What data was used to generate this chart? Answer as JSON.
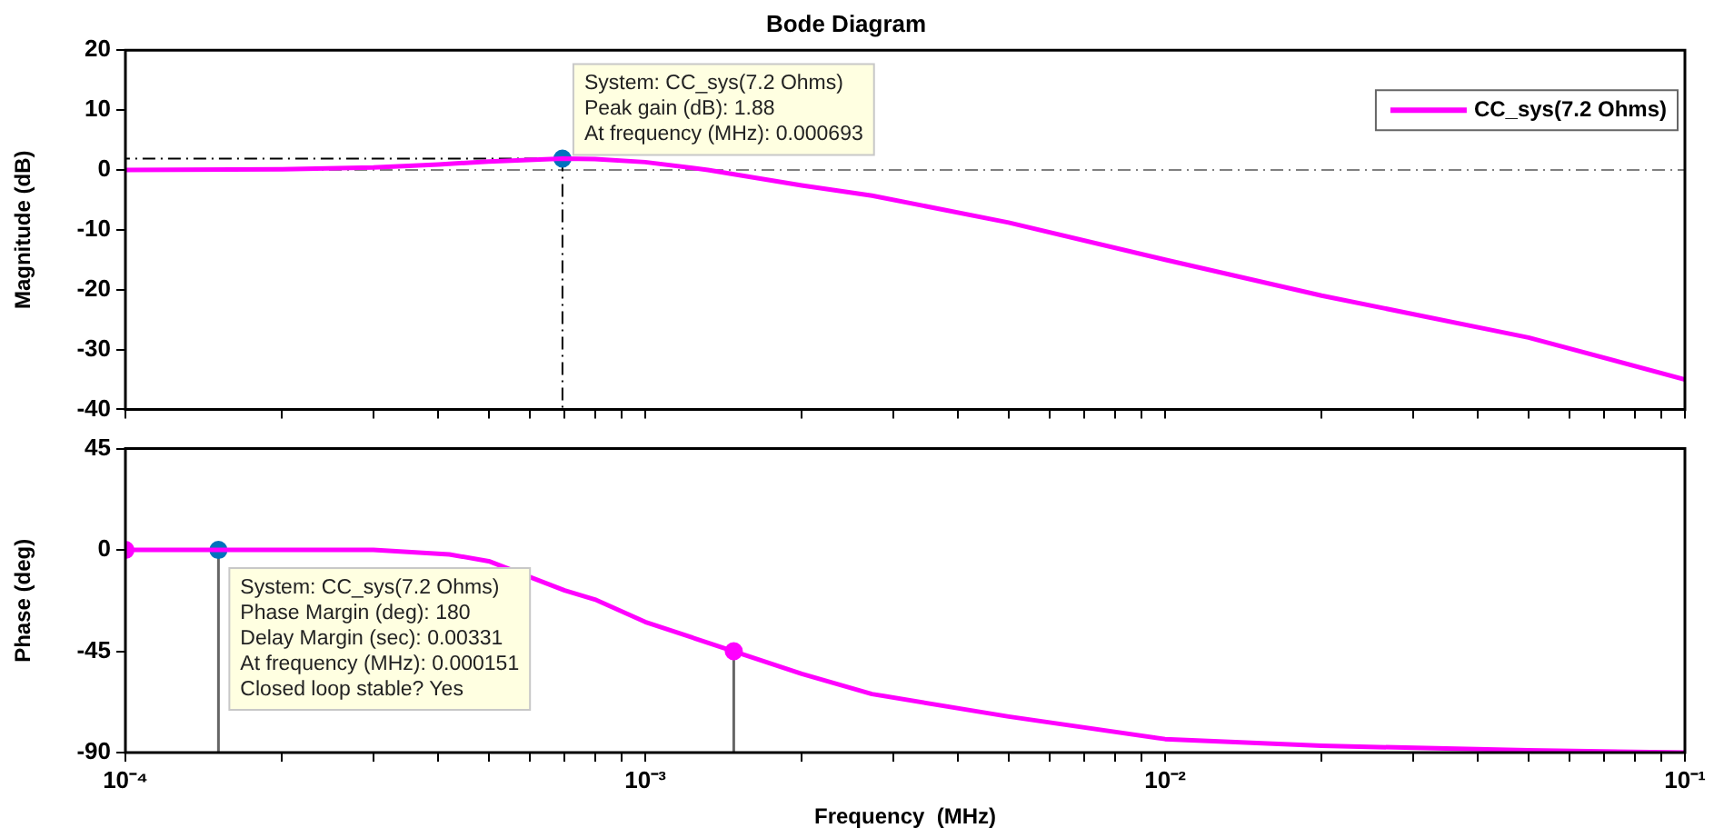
{
  "chart_data": [
    {
      "type": "line",
      "title": "Bode Diagram",
      "ylabel": "Magnitude (dB)",
      "log": "x",
      "grid": false,
      "legend": "top right",
      "tick_labels": "y",
      "xlim": [
        0.0001,
        0.1
      ],
      "xticks": [
        {
          "value": 0.0001,
          "label": null
        },
        {
          "value": 0.0002,
          "label": null
        },
        {
          "value": 0.0003,
          "label": null
        },
        {
          "value": 0.0004,
          "label": null
        },
        {
          "value": 0.0005,
          "label": null
        },
        {
          "value": 0.0006,
          "label": null
        },
        {
          "value": 0.0007,
          "label": null
        },
        {
          "value": 0.0008,
          "label": null
        },
        {
          "value": 0.0009,
          "label": null
        },
        {
          "value": 0.001,
          "label": null
        },
        {
          "value": 0.002,
          "label": null
        },
        {
          "value": 0.003,
          "label": null
        },
        {
          "value": 0.004,
          "label": null
        },
        {
          "value": 0.005,
          "label": null
        },
        {
          "value": 0.006,
          "label": null
        },
        {
          "value": 0.007,
          "label": null
        },
        {
          "value": 0.008,
          "label": null
        },
        {
          "value": 0.009,
          "label": null
        },
        {
          "value": 0.01,
          "label": null
        },
        {
          "value": 0.02,
          "label": null
        },
        {
          "value": 0.03,
          "label": null
        },
        {
          "value": 0.04,
          "label": null
        },
        {
          "value": 0.05,
          "label": null
        },
        {
          "value": 0.06,
          "label": null
        },
        {
          "value": 0.07,
          "label": null
        },
        {
          "value": 0.08,
          "label": null
        },
        {
          "value": 0.09,
          "label": null
        },
        {
          "value": 0.1,
          "label": null
        }
      ],
      "ylim": [
        -40,
        20
      ],
      "yticks": [
        -40,
        -30,
        -20,
        -10,
        0,
        10,
        20
      ],
      "ref_lines": [
        {
          "axis": "y",
          "value": 0,
          "color": "#808080",
          "line_style": "dashed"
        }
      ],
      "annotations": [
        {
          "text": "System: CC_sys(7.2 Ohms)\nPeak gain (dB): 1.88\nAt frequency (MHz): 0.000693",
          "x": 0.000693,
          "y": 1.88
        }
      ],
      "series": [
        {
          "name": "CC_sys(7.2 Ohms)",
          "color": "#ff00ff",
          "x": [
            0.0001,
            0.0002,
            0.0003,
            0.0004,
            0.0005,
            0.000693,
            0.0008,
            0.001,
            0.00132,
            0.0015,
            0.002,
            0.00273,
            0.005,
            0.01,
            0.02,
            0.05,
            0.1
          ],
          "values": [
            0,
            0.1,
            0.4,
            0.9,
            1.4,
            1.88,
            1.8,
            1.3,
            0,
            -0.8,
            -2.6,
            -4.3,
            -8.8,
            -15,
            -21,
            -28,
            -35
          ]
        },
        {
          "type": "scatter",
          "color": "#0072bd",
          "line_style": "dashed",
          "x": [
            0.000693
          ],
          "values": [
            1.88
          ]
        }
      ]
    },
    {
      "type": "line",
      "xlabel": "Frequency  (MHz)",
      "ylabel": "Phase (deg)",
      "log": "x",
      "grid": false,
      "xlim": [
        0.0001,
        0.1
      ],
      "xticks": [
        {
          "value": 0.0001,
          "label": "10⁻⁴"
        },
        {
          "value": 0.0002,
          "label": null
        },
        {
          "value": 0.0003,
          "label": null
        },
        {
          "value": 0.0004,
          "label": null
        },
        {
          "value": 0.0005,
          "label": null
        },
        {
          "value": 0.0006,
          "label": null
        },
        {
          "value": 0.0007,
          "label": null
        },
        {
          "value": 0.0008,
          "label": null
        },
        {
          "value": 0.0009,
          "label": null
        },
        {
          "value": 0.001,
          "label": "10⁻³"
        },
        {
          "value": 0.002,
          "label": null
        },
        {
          "value": 0.003,
          "label": null
        },
        {
          "value": 0.004,
          "label": null
        },
        {
          "value": 0.005,
          "label": null
        },
        {
          "value": 0.006,
          "label": null
        },
        {
          "value": 0.007,
          "label": null
        },
        {
          "value": 0.008,
          "label": null
        },
        {
          "value": 0.009,
          "label": null
        },
        {
          "value": 0.01,
          "label": "10⁻²"
        },
        {
          "value": 0.02,
          "label": null
        },
        {
          "value": 0.03,
          "label": null
        },
        {
          "value": 0.04,
          "label": null
        },
        {
          "value": 0.05,
          "label": null
        },
        {
          "value": 0.06,
          "label": null
        },
        {
          "value": 0.07,
          "label": null
        },
        {
          "value": 0.08,
          "label": null
        },
        {
          "value": 0.09,
          "label": null
        },
        {
          "value": 0.1,
          "label": "10⁻¹"
        }
      ],
      "ylim": [
        -90,
        45
      ],
      "yticks": [
        -90,
        -45,
        0,
        45
      ],
      "annotations": [
        {
          "text": "System: CC_sys(7.2 Ohms)\nPhase Margin (deg): 180\nDelay Margin (sec): 0.00331\nAt frequency (MHz): 0.000151\nClosed loop stable? Yes",
          "x": 0.000151,
          "y": 0
        }
      ],
      "series": [
        {
          "color": "#ff00ff",
          "x": [
            0.0001,
            0.00015,
            0.0002,
            0.0003,
            0.00042,
            0.0005,
            0.0006,
            0.0007,
            0.0008,
            0.001,
            0.00148,
            0.002,
            0.00273,
            0.005,
            0.01,
            0.02,
            0.05,
            0.1
          ],
          "values": [
            0,
            0,
            0,
            0,
            -2,
            -5,
            -12,
            -18,
            -22,
            -32,
            -45,
            -55,
            -64,
            -74,
            -84,
            -87,
            -89,
            -90
          ]
        },
        {
          "type": "scatter",
          "color": "#ff00ff",
          "x": [
            0.0001,
            0.00148
          ],
          "values": [
            0,
            -45
          ],
          "errors": [
            null,
            [
              -90,
              -45
            ]
          ]
        },
        {
          "type": "scatter",
          "color": "#0072bd",
          "x": [
            0.000151
          ],
          "values": [
            0
          ],
          "errors": [
            [
              -90,
              0
            ]
          ]
        }
      ]
    }
  ]
}
